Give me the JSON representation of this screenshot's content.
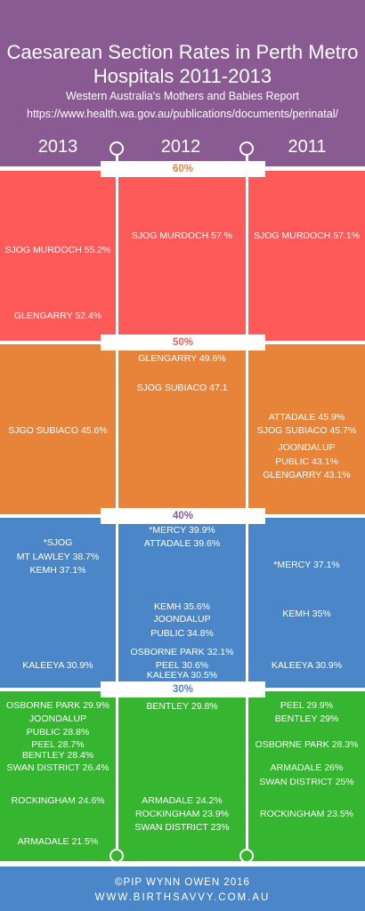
{
  "chart_data": {
    "type": "table",
    "title": "Caesarean Section Rates in Perth Metro Hospitals 2011-2013",
    "subtitle": "Western Australia's Mothers and Babies Report",
    "source": "https://www.health.wa.gov.au/publications/documents/perinatal/",
    "columns": [
      "2013",
      "2012",
      "2011"
    ],
    "bands": [
      {
        "label": "60%",
        "color": "#ff5a5a"
      },
      {
        "label": "50%",
        "color": "#e8843a"
      },
      {
        "label": "40%",
        "color": "#4a86c8"
      },
      {
        "label": "30%",
        "color": "#36b531"
      }
    ],
    "series": [
      {
        "name": "2013",
        "labels": [
          "SJOG MURDOCH 55.2%",
          "GLENGARRY 52.4%",
          "SJGO SUBIACO 45.6%",
          "*SJOG",
          "MT LAWLEY 38.7%",
          "KEMH 37.1%",
          "KALEEYA 30.9%",
          "OSBORNE PARK 29.9%",
          "JOONDALUP",
          "PUBLIC 28.8%",
          "PEEL 28.7%",
          "BENTLEY 28.4%",
          "SWAN DISTRICT 26.4%",
          "ROCKINGHAM 24.6%",
          "ARMADALE 21.5%"
        ]
      },
      {
        "name": "2012",
        "labels": [
          "SJOG MURDOCH 57 %",
          "GLENGARRY 49.6%",
          "SJOG SUBIACO 47.1",
          "*MERCY 39.9%",
          "ATTADALE 39.6%",
          "KEMH 35.6%",
          "JOONDALUP",
          "PUBLIC 34.8%",
          "OSBORNE PARK 32.1%",
          "PEEL 30.6%",
          "KALEEYA 30.5%",
          "BENTLEY 29.8%",
          "ARMADALE 24.2%",
          "ROCKINGHAM 23.9%",
          "SWAN DISTRICT 23%"
        ]
      },
      {
        "name": "2011",
        "labels": [
          "SJOG MURDOCH 57.1%",
          "ATTADALE 45.9%",
          "SJOG SUBIACO 45.7%",
          "JOONDALUP",
          "PUBLIC 43.1%",
          "GLENGARRY 43.1%",
          "*MERCY 37.1%",
          "KEMH 35%",
          "KALEEYA 30.9%",
          "PEEL 29.9%",
          "BENTLEY 29%",
          "OSBORNE PARK 28.3%",
          "ARMADALE 26%",
          "SWAN DISTRICT 25%",
          "ROCKINGHAM 23.5%"
        ]
      }
    ],
    "values": {
      "2013": [
        {
          "hospital": "SJOG MURDOCH",
          "rate": 55.2
        },
        {
          "hospital": "GLENGARRY",
          "rate": 52.4
        },
        {
          "hospital": "SJGO SUBIACO",
          "rate": 45.6
        },
        {
          "hospital": "*SJOG MT LAWLEY",
          "rate": 38.7
        },
        {
          "hospital": "KEMH",
          "rate": 37.1
        },
        {
          "hospital": "KALEEYA",
          "rate": 30.9
        },
        {
          "hospital": "OSBORNE PARK",
          "rate": 29.9
        },
        {
          "hospital": "JOONDALUP PUBLIC",
          "rate": 28.8
        },
        {
          "hospital": "PEEL",
          "rate": 28.7
        },
        {
          "hospital": "BENTLEY",
          "rate": 28.4
        },
        {
          "hospital": "SWAN DISTRICT",
          "rate": 26.4
        },
        {
          "hospital": "ROCKINGHAM",
          "rate": 24.6
        },
        {
          "hospital": "ARMADALE",
          "rate": 21.5
        }
      ],
      "2012": [
        {
          "hospital": "SJOG MURDOCH",
          "rate": 57
        },
        {
          "hospital": "GLENGARRY",
          "rate": 49.6
        },
        {
          "hospital": "SJOG SUBIACO",
          "rate": 47.1
        },
        {
          "hospital": "*MERCY",
          "rate": 39.9
        },
        {
          "hospital": "ATTADALE",
          "rate": 39.6
        },
        {
          "hospital": "KEMH",
          "rate": 35.6
        },
        {
          "hospital": "JOONDALUP PUBLIC",
          "rate": 34.8
        },
        {
          "hospital": "OSBORNE PARK",
          "rate": 32.1
        },
        {
          "hospital": "PEEL",
          "rate": 30.6
        },
        {
          "hospital": "KALEEYA",
          "rate": 30.5
        },
        {
          "hospital": "BENTLEY",
          "rate": 29.8
        },
        {
          "hospital": "ARMADALE",
          "rate": 24.2
        },
        {
          "hospital": "ROCKINGHAM",
          "rate": 23.9
        },
        {
          "hospital": "SWAN DISTRICT",
          "rate": 23
        }
      ],
      "2011": [
        {
          "hospital": "SJOG MURDOCH",
          "rate": 57.1
        },
        {
          "hospital": "ATTADALE",
          "rate": 45.9
        },
        {
          "hospital": "SJOG SUBIACO",
          "rate": 45.7
        },
        {
          "hospital": "JOONDALUP PUBLIC",
          "rate": 43.1
        },
        {
          "hospital": "GLENGARRY",
          "rate": 43.1
        },
        {
          "hospital": "*MERCY",
          "rate": 37.1
        },
        {
          "hospital": "KEMH",
          "rate": 35
        },
        {
          "hospital": "KALEEYA",
          "rate": 30.9
        },
        {
          "hospital": "PEEL",
          "rate": 29.9
        },
        {
          "hospital": "BENTLEY",
          "rate": 29
        },
        {
          "hospital": "OSBORNE PARK",
          "rate": 28.3
        },
        {
          "hospital": "ARMADALE",
          "rate": 26
        },
        {
          "hospital": "SWAN DISTRICT",
          "rate": 25
        },
        {
          "hospital": "ROCKINGHAM",
          "rate": 23.5
        }
      ]
    }
  },
  "colors": {
    "header": "#8a5b92",
    "footer": "#4a86c8",
    "red": "#ff5a5a",
    "orange": "#e8843a",
    "blue": "#4a86c8",
    "green": "#36b531",
    "tick60": "#e8843a",
    "tick50": "#ff5a5a",
    "tick40": "#8a5b92",
    "tick30": "#4a86c8"
  },
  "footer": {
    "line1": "©PIP WYNN OWEN 2016",
    "line2": "WWW.BIRTHSAVVY.COM.AU"
  }
}
